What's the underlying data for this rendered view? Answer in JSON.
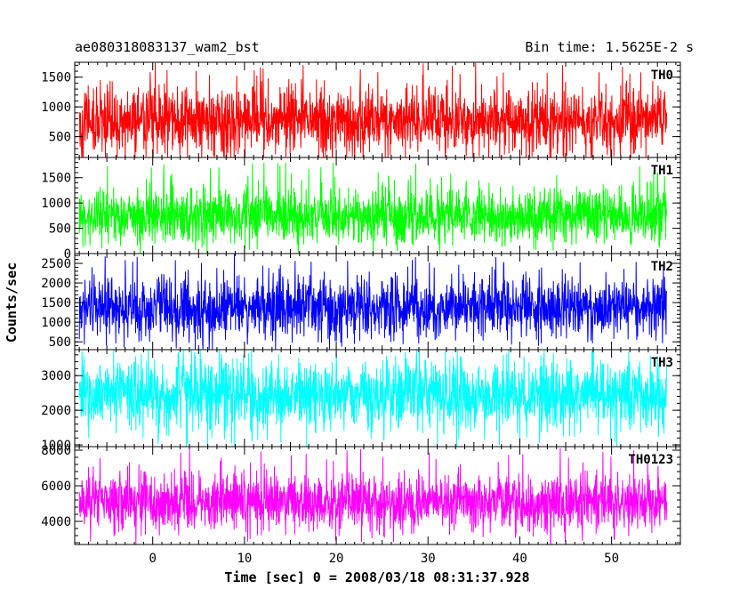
{
  "chart_data": {
    "type": "line",
    "title_left": "ae080318083137_wam2_bst",
    "title_right": "Bin time: 1.5625E-2 s",
    "xlabel": "Time [sec] 0 = 2008/03/18 08:31:37.928",
    "ylabel": "Counts/sec",
    "xlim": [
      -8.5,
      57.5
    ],
    "x_range_data": [
      -8,
      56
    ],
    "xticks": [
      0,
      10,
      20,
      30,
      40,
      50
    ],
    "xticklabels": [
      "0",
      "10",
      "20",
      "30",
      "40",
      "50"
    ],
    "grid": false,
    "panels": [
      {
        "name": "TH0",
        "color": "#ff0000",
        "ylim": [
          150,
          1750
        ],
        "yticks": [
          500,
          1000,
          1500
        ],
        "yticklabels": [
          "500",
          "1000",
          "1500"
        ],
        "center": 780,
        "low_env": 300,
        "high_env": 1400,
        "extreme_low": 100,
        "extreme_high": 1750,
        "peak_near": [
          0,
          8
        ]
      },
      {
        "name": "TH1",
        "color": "#00ff00",
        "ylim": [
          0,
          1900
        ],
        "yticks": [
          0,
          500,
          1000,
          1500
        ],
        "yticklabels": [
          "0",
          "500",
          "1000",
          "1500"
        ],
        "center": 760,
        "low_env": 250,
        "high_env": 1350,
        "extreme_low": 50,
        "extreme_high": 1800,
        "peak_near": [
          1,
          7
        ]
      },
      {
        "name": "TH2",
        "color": "#0000ff",
        "ylim": [
          300,
          2750
        ],
        "yticks": [
          500,
          1000,
          1500,
          2000,
          2500
        ],
        "yticklabels": [
          "500",
          "1000",
          "1500",
          "2000",
          "2500"
        ],
        "center": 1380,
        "low_env": 650,
        "high_env": 2150,
        "extreme_low": 350,
        "extreme_high": 2700,
        "peak_near": [
          3,
          7
        ]
      },
      {
        "name": "TH3",
        "color": "#00ffff",
        "ylim": [
          950,
          3750
        ],
        "yticks": [
          1000,
          2000,
          3000
        ],
        "yticklabels": [
          "1000",
          "2000",
          "3000"
        ],
        "center": 2450,
        "low_env": 1450,
        "high_env": 3450,
        "extreme_low": 1000,
        "extreme_high": 3700,
        "peak_near": [
          2,
          10
        ]
      },
      {
        "name": "TH0123",
        "color": "#ff00ff",
        "ylim": [
          2700,
          8200
        ],
        "yticks": [
          4000,
          6000,
          8000
        ],
        "yticklabels": [
          "4000",
          "6000",
          "8000"
        ],
        "center": 5050,
        "low_env": 3500,
        "high_env": 6700,
        "extreme_low": 2800,
        "extreme_high": 8100,
        "peak_near": [
          0,
          7
        ]
      }
    ]
  }
}
